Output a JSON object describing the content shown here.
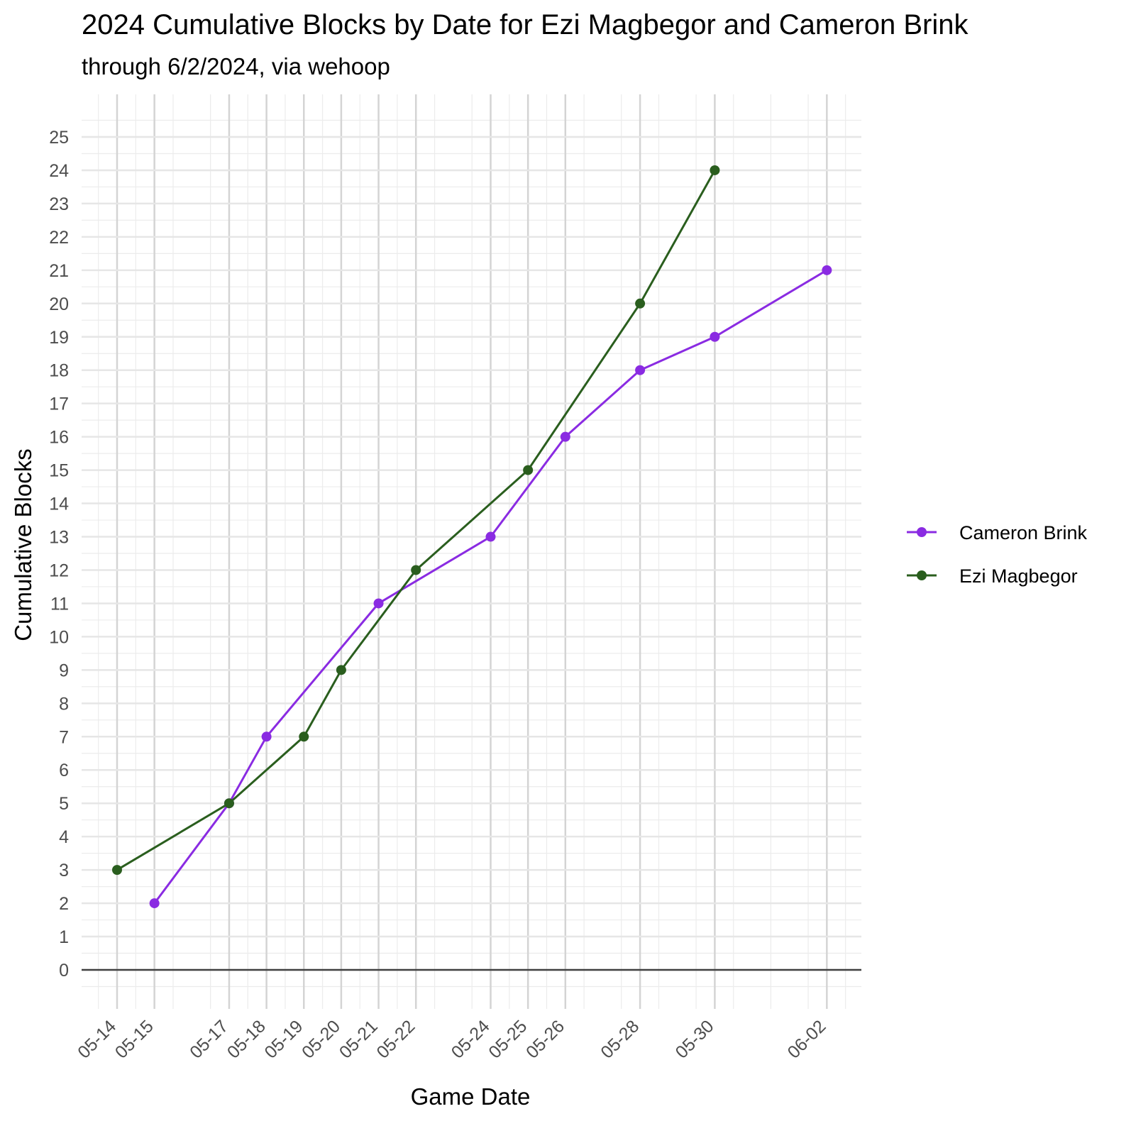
{
  "chart_data": {
    "type": "line",
    "title": "2024 Cumulative Blocks by Date for Ezi Magbegor and Cameron Brink",
    "subtitle": "through 6/2/2024, via wehoop",
    "xlabel": "Game Date",
    "ylabel": "Cumulative Blocks",
    "x_tick_labels": [
      "05-14",
      "05-15",
      "05-17",
      "05-18",
      "05-19",
      "05-20",
      "05-21",
      "05-22",
      "05-24",
      "05-25",
      "05-26",
      "05-28",
      "05-30",
      "06-02"
    ],
    "x_tick_dates": [
      "2024-05-14",
      "2024-05-15",
      "2024-05-17",
      "2024-05-18",
      "2024-05-19",
      "2024-05-20",
      "2024-05-21",
      "2024-05-22",
      "2024-05-24",
      "2024-05-25",
      "2024-05-26",
      "2024-05-28",
      "2024-05-30",
      "2024-06-02"
    ],
    "xlim": [
      "2024-05-14",
      "2024-06-02"
    ],
    "y_ticks": [
      0,
      1,
      2,
      3,
      4,
      5,
      6,
      7,
      8,
      9,
      10,
      11,
      12,
      13,
      14,
      15,
      16,
      17,
      18,
      19,
      20,
      21,
      22,
      23,
      24,
      25
    ],
    "ylim": [
      0,
      25
    ],
    "grid": true,
    "legend_position": "right",
    "series": [
      {
        "name": "Cameron Brink",
        "color": "#8a2be2",
        "points": [
          {
            "x": "2024-05-15",
            "y": 2
          },
          {
            "x": "2024-05-17",
            "y": 5
          },
          {
            "x": "2024-05-18",
            "y": 7
          },
          {
            "x": "2024-05-21",
            "y": 11
          },
          {
            "x": "2024-05-24",
            "y": 13
          },
          {
            "x": "2024-05-26",
            "y": 16
          },
          {
            "x": "2024-05-28",
            "y": 18
          },
          {
            "x": "2024-05-30",
            "y": 19
          },
          {
            "x": "2024-06-02",
            "y": 21
          }
        ]
      },
      {
        "name": "Ezi Magbegor",
        "color": "#2a5e1e",
        "points": [
          {
            "x": "2024-05-14",
            "y": 3
          },
          {
            "x": "2024-05-17",
            "y": 5
          },
          {
            "x": "2024-05-19",
            "y": 7
          },
          {
            "x": "2024-05-20",
            "y": 9
          },
          {
            "x": "2024-05-22",
            "y": 12
          },
          {
            "x": "2024-05-25",
            "y": 15
          },
          {
            "x": "2024-05-28",
            "y": 20
          },
          {
            "x": "2024-05-30",
            "y": 24
          }
        ]
      }
    ]
  }
}
